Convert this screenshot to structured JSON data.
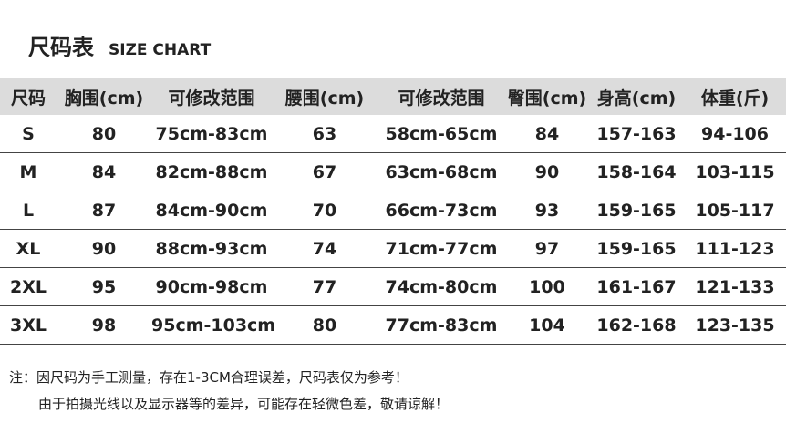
{
  "title": {
    "cn": "尺码表",
    "en": "SIZE CHART"
  },
  "table": {
    "headers": [
      "尺码",
      "胸围(cm)",
      "可修改范围",
      "腰围(cm)",
      "可修改范围",
      "臀围(cm)",
      "身高(cm)",
      "体重(斤)"
    ],
    "rows": [
      [
        "S",
        "80",
        "75cm-83cm",
        "63",
        "58cm-65cm",
        "84",
        "157-163",
        "94-106"
      ],
      [
        "M",
        "84",
        "82cm-88cm",
        "67",
        "63cm-68cm",
        "90",
        "158-164",
        "103-115"
      ],
      [
        "L",
        "87",
        "84cm-90cm",
        "70",
        "66cm-73cm",
        "93",
        "159-165",
        "105-117"
      ],
      [
        "XL",
        "90",
        "88cm-93cm",
        "74",
        "71cm-77cm",
        "97",
        "159-165",
        "111-123"
      ],
      [
        "2XL",
        "95",
        "90cm-98cm",
        "77",
        "74cm-80cm",
        "100",
        "161-167",
        "121-133"
      ],
      [
        "3XL",
        "98",
        "95cm-103cm",
        "80",
        "77cm-83cm",
        "104",
        "162-168",
        "123-135"
      ]
    ]
  },
  "notes": {
    "line1": "注：因尺码为手工测量，存在1-3CM合理误差，尺码表仅为参考！",
    "line2": "由于拍摄光线以及显示器等的差异，可能存在轻微色差，敬请谅解！"
  }
}
